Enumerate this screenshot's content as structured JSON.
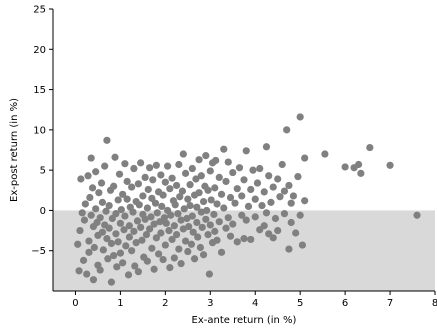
{
  "chart_data": {
    "type": "scatter",
    "title": "",
    "xlabel": "Ex-ante return (in %)",
    "ylabel": "Ex-post return (in %)",
    "xlim": [
      -0.5,
      8
    ],
    "ylim": [
      -10,
      25
    ],
    "xticks": [
      0,
      1,
      2,
      3,
      4,
      5,
      6,
      7,
      8
    ],
    "yticks": [
      -5,
      0,
      5,
      10,
      15,
      20,
      25
    ],
    "grid": false,
    "negative_region_shaded": true,
    "colors": {
      "points": "#808080",
      "shade": "#d9d9d9",
      "axis": "#000000"
    },
    "series": [
      {
        "points": [
          [
            0.05,
            -4.2
          ],
          [
            0.08,
            -7.5
          ],
          [
            0.1,
            -2.5
          ],
          [
            0.12,
            3.9
          ],
          [
            0.15,
            -0.3
          ],
          [
            0.18,
            -6.2
          ],
          [
            0.2,
            -1.2
          ],
          [
            0.22,
            0.8
          ],
          [
            0.25,
            -7.9
          ],
          [
            0.28,
            4.3
          ],
          [
            0.3,
            -3.8
          ],
          [
            0.3,
            -5.2
          ],
          [
            0.32,
            1.6
          ],
          [
            0.35,
            -0.6
          ],
          [
            0.35,
            6.5
          ],
          [
            0.38,
            2.8
          ],
          [
            0.4,
            -2.0
          ],
          [
            0.4,
            -8.6
          ],
          [
            0.42,
            -4.6
          ],
          [
            0.45,
            0.2
          ],
          [
            0.45,
            4.8
          ],
          [
            0.48,
            -1.5
          ],
          [
            0.5,
            -6.8
          ],
          [
            0.5,
            -3.1
          ],
          [
            0.52,
            2.2
          ],
          [
            0.55,
            -0.9
          ],
          [
            0.55,
            -7.4
          ],
          [
            0.58,
            3.4
          ],
          [
            0.6,
            -2.7
          ],
          [
            0.6,
            1.0
          ],
          [
            0.62,
            -4.9
          ],
          [
            0.65,
            -1.8
          ],
          [
            0.65,
            5.5
          ],
          [
            0.68,
            -0.1
          ],
          [
            0.7,
            -3.5
          ],
          [
            0.7,
            8.7
          ],
          [
            0.72,
            -6.0
          ],
          [
            0.75,
            0.6
          ],
          [
            0.75,
            -2.2
          ],
          [
            0.78,
            2.5
          ],
          [
            0.8,
            -4.1
          ],
          [
            0.8,
            -8.9
          ],
          [
            0.82,
            -1.0
          ],
          [
            0.85,
            3.0
          ],
          [
            0.85,
            -5.6
          ],
          [
            0.88,
            6.6
          ],
          [
            0.9,
            -0.4
          ],
          [
            0.9,
            -2.9
          ],
          [
            0.92,
            -7.0
          ],
          [
            0.95,
            1.3
          ],
          [
            0.95,
            -3.9
          ],
          [
            0.98,
            4.5
          ],
          [
            1.0,
            -1.6
          ],
          [
            1.0,
            -5.3
          ],
          [
            1.02,
            0.1
          ],
          [
            1.05,
            2.0
          ],
          [
            1.05,
            -6.5
          ],
          [
            1.08,
            -2.4
          ],
          [
            1.1,
            5.8
          ],
          [
            1.1,
            -0.7
          ],
          [
            1.12,
            -4.4
          ],
          [
            1.15,
            1.4
          ],
          [
            1.15,
            3.6
          ],
          [
            1.18,
            -8.0
          ],
          [
            1.2,
            -1.9
          ],
          [
            1.2,
            -3.3
          ],
          [
            1.22,
            0.4
          ],
          [
            1.25,
            -5.0
          ],
          [
            1.25,
            2.9
          ],
          [
            1.28,
            -0.2
          ],
          [
            1.3,
            5.2
          ],
          [
            1.3,
            -2.6
          ],
          [
            1.32,
            -6.9
          ],
          [
            1.35,
            1.1
          ],
          [
            1.35,
            -4.0
          ],
          [
            1.38,
            -1.3
          ],
          [
            1.4,
            3.3
          ],
          [
            1.4,
            -7.6
          ],
          [
            1.42,
            0.7
          ],
          [
            1.45,
            -2.1
          ],
          [
            1.45,
            5.9
          ],
          [
            1.48,
            -3.7
          ],
          [
            1.5,
            1.8
          ],
          [
            1.5,
            -0.5
          ],
          [
            1.52,
            -5.8
          ],
          [
            1.55,
            4.1
          ],
          [
            1.55,
            -1.1
          ],
          [
            1.58,
            -3.0
          ],
          [
            1.6,
            0.3
          ],
          [
            1.6,
            -6.3
          ],
          [
            1.62,
            2.6
          ],
          [
            1.65,
            -2.3
          ],
          [
            1.65,
            5.3
          ],
          [
            1.68,
            -0.8
          ],
          [
            1.7,
            -4.7
          ],
          [
            1.7,
            1.5
          ],
          [
            1.72,
            3.8
          ],
          [
            1.75,
            -1.7
          ],
          [
            1.75,
            -7.3
          ],
          [
            1.78,
            0.9
          ],
          [
            1.8,
            -3.4
          ],
          [
            1.8,
            5.6
          ],
          [
            1.82,
            -0.3
          ],
          [
            1.85,
            2.3
          ],
          [
            1.85,
            -5.4
          ],
          [
            1.88,
            -1.4
          ],
          [
            1.9,
            4.4
          ],
          [
            1.9,
            -2.8
          ],
          [
            1.92,
            0.5
          ],
          [
            1.95,
            -6.1
          ],
          [
            1.95,
            1.9
          ],
          [
            1.98,
            -0.9
          ],
          [
            2.0,
            3.5
          ],
          [
            2.0,
            -4.3
          ],
          [
            2.02,
            -1.6
          ],
          [
            2.05,
            5.5
          ],
          [
            2.05,
            0.0
          ],
          [
            2.08,
            -2.5
          ],
          [
            2.1,
            2.7
          ],
          [
            2.1,
            -7.1
          ],
          [
            2.12,
            -0.6
          ],
          [
            2.15,
            -3.6
          ],
          [
            2.15,
            4.0
          ],
          [
            2.18,
            1.2
          ],
          [
            2.2,
            -1.9
          ],
          [
            2.2,
            -5.9
          ],
          [
            2.22,
            0.7
          ],
          [
            2.25,
            3.1
          ],
          [
            2.25,
            -3.0
          ],
          [
            2.28,
            -0.4
          ],
          [
            2.3,
            5.7
          ],
          [
            2.3,
            -4.8
          ],
          [
            2.32,
            1.7
          ],
          [
            2.35,
            -1.2
          ],
          [
            2.35,
            -6.6
          ],
          [
            2.38,
            2.4
          ],
          [
            2.4,
            -2.3
          ],
          [
            2.4,
            7.0
          ],
          [
            2.42,
            0.2
          ],
          [
            2.45,
            -3.8
          ],
          [
            2.45,
            4.6
          ],
          [
            2.48,
            -1.0
          ],
          [
            2.5,
            1.4
          ],
          [
            2.5,
            -5.1
          ],
          [
            2.52,
            -2.0
          ],
          [
            2.55,
            3.2
          ],
          [
            2.55,
            0.6
          ],
          [
            2.58,
            -4.2
          ],
          [
            2.6,
            5.2
          ],
          [
            2.6,
            -0.7
          ],
          [
            2.62,
            -2.7
          ],
          [
            2.65,
            1.9
          ],
          [
            2.65,
            -6.0
          ],
          [
            2.68,
            3.9
          ],
          [
            2.7,
            -1.5
          ],
          [
            2.7,
            0.4
          ],
          [
            2.72,
            -3.3
          ],
          [
            2.75,
            6.3
          ],
          [
            2.75,
            2.2
          ],
          [
            2.78,
            -4.6
          ],
          [
            2.8,
            -0.2
          ],
          [
            2.8,
            4.3
          ],
          [
            2.82,
            -2.1
          ],
          [
            2.85,
            1.1
          ],
          [
            2.85,
            -5.5
          ],
          [
            2.88,
            3.0
          ],
          [
            2.9,
            -1.1
          ],
          [
            2.9,
            6.8
          ],
          [
            2.92,
            0.0
          ],
          [
            2.95,
            -3.0
          ],
          [
            2.95,
            2.5
          ],
          [
            2.98,
            -7.9
          ],
          [
            3.0,
            4.9
          ],
          [
            3.0,
            -1.8
          ],
          [
            3.02,
            1.3
          ],
          [
            3.05,
            -4.0
          ],
          [
            3.05,
            5.9
          ],
          [
            3.08,
            -0.5
          ],
          [
            3.1,
            2.8
          ],
          [
            3.1,
            -2.6
          ],
          [
            3.12,
            6.2
          ],
          [
            3.15,
            0.8
          ],
          [
            3.15,
            -3.7
          ],
          [
            3.2,
            4.1
          ],
          [
            3.2,
            -1.4
          ],
          [
            3.25,
            2.0
          ],
          [
            3.25,
            -5.2
          ],
          [
            3.3,
            7.6
          ],
          [
            3.3,
            0.3
          ],
          [
            3.35,
            -2.2
          ],
          [
            3.35,
            3.6
          ],
          [
            3.4,
            -0.9
          ],
          [
            3.4,
            6.0
          ],
          [
            3.45,
            1.6
          ],
          [
            3.45,
            -3.2
          ],
          [
            3.5,
            4.7
          ],
          [
            3.5,
            -1.7
          ],
          [
            3.55,
            0.9
          ],
          [
            3.6,
            -3.9
          ],
          [
            3.6,
            2.7
          ],
          [
            3.65,
            5.3
          ],
          [
            3.7,
            -0.6
          ],
          [
            3.7,
            1.8
          ],
          [
            3.75,
            -3.5
          ],
          [
            3.75,
            3.8
          ],
          [
            3.8,
            7.4
          ],
          [
            3.8,
            -1.2
          ],
          [
            3.85,
            0.5
          ],
          [
            3.9,
            2.6
          ],
          [
            3.9,
            -3.6
          ],
          [
            3.95,
            5.0
          ],
          [
            4.0,
            -0.8
          ],
          [
            4.0,
            1.4
          ],
          [
            4.05,
            3.4
          ],
          [
            4.1,
            -2.4
          ],
          [
            4.1,
            5.2
          ],
          [
            4.15,
            0.6
          ],
          [
            4.2,
            -1.9
          ],
          [
            4.2,
            2.3
          ],
          [
            4.25,
            7.9
          ],
          [
            4.25,
            -0.3
          ],
          [
            4.3,
            -2.9
          ],
          [
            4.3,
            4.3
          ],
          [
            4.35,
            1.0
          ],
          [
            4.4,
            -3.4
          ],
          [
            4.4,
            2.9
          ],
          [
            4.45,
            -1.0
          ],
          [
            4.5,
            3.9
          ],
          [
            4.5,
            -2.5
          ],
          [
            4.55,
            1.7
          ],
          [
            4.6,
            5.7
          ],
          [
            4.65,
            -0.4
          ],
          [
            4.65,
            2.4
          ],
          [
            4.7,
            10.0
          ],
          [
            4.75,
            -4.8
          ],
          [
            4.75,
            3.1
          ],
          [
            4.8,
            -1.5
          ],
          [
            4.8,
            0.9
          ],
          [
            4.85,
            1.8
          ],
          [
            4.9,
            -2.8
          ],
          [
            4.95,
            4.2
          ],
          [
            5.0,
            11.6
          ],
          [
            5.0,
            -0.6
          ],
          [
            5.05,
            -4.3
          ],
          [
            5.1,
            6.5
          ],
          [
            5.1,
            1.2
          ],
          [
            5.55,
            7.0
          ],
          [
            6.0,
            5.4
          ],
          [
            6.2,
            5.3
          ],
          [
            6.3,
            5.7
          ],
          [
            6.35,
            4.6
          ],
          [
            6.55,
            7.8
          ],
          [
            7.0,
            5.6
          ],
          [
            7.6,
            -0.6
          ]
        ]
      }
    ]
  }
}
